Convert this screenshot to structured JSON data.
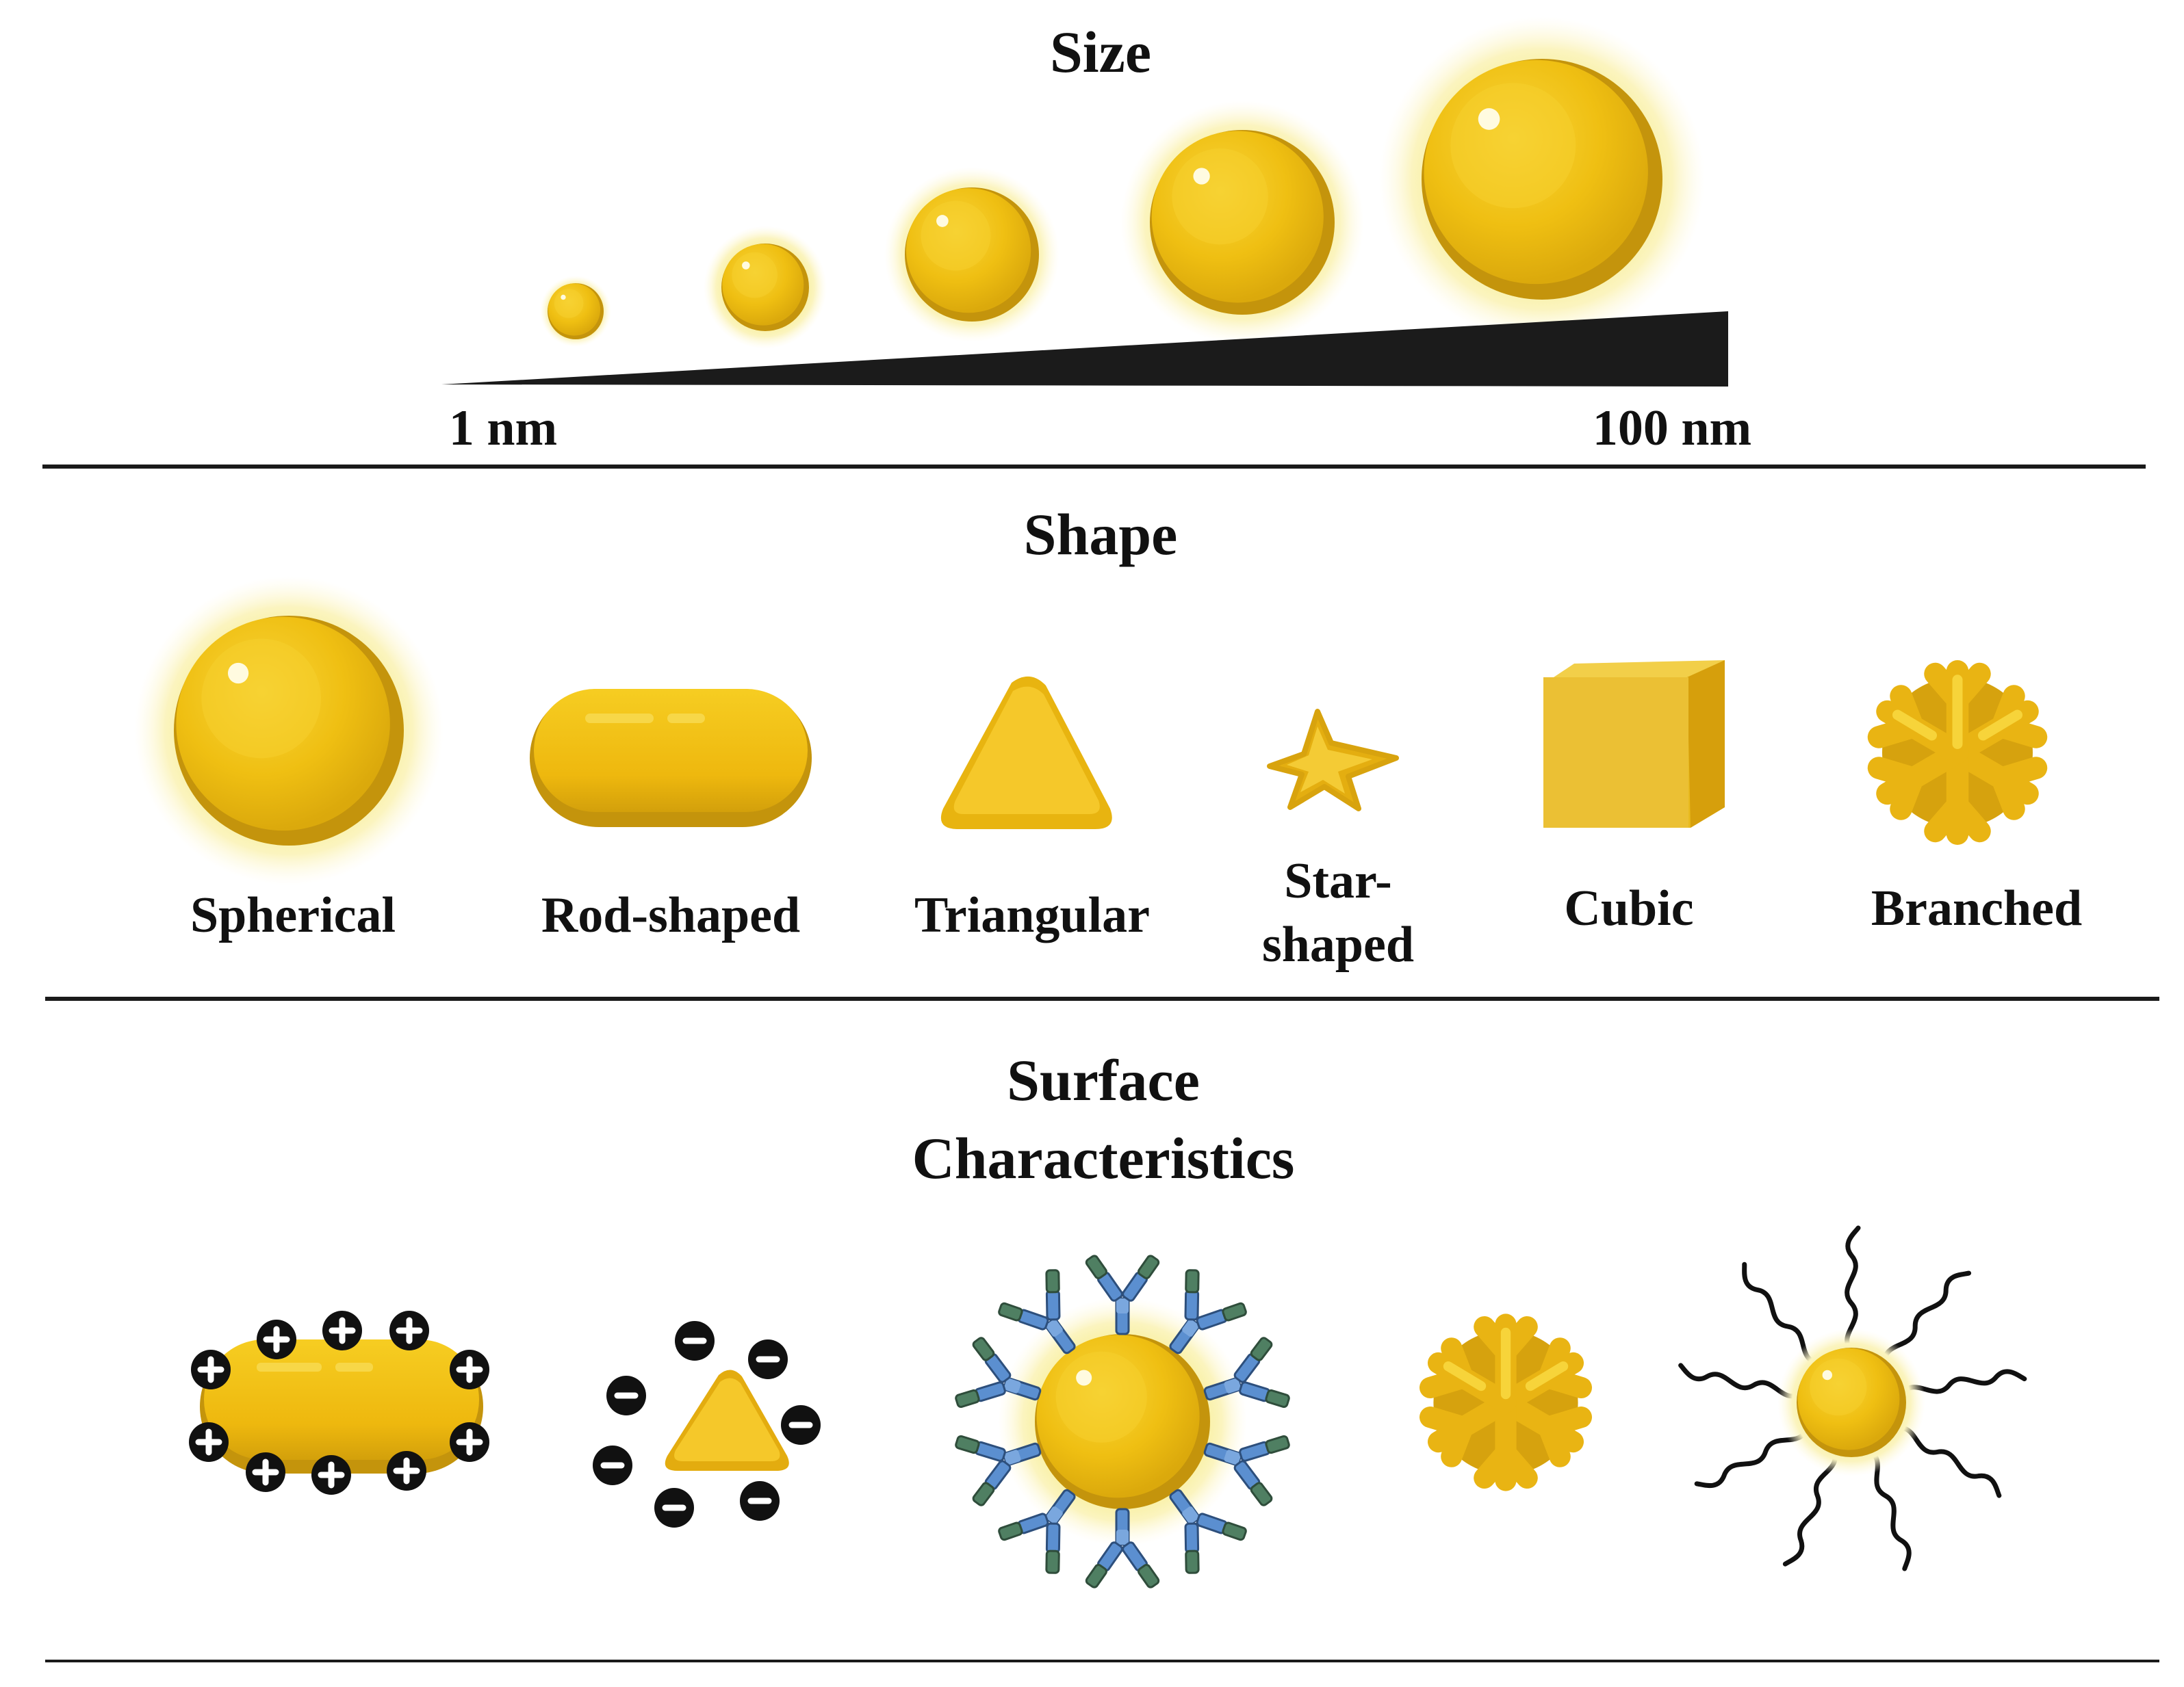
{
  "size_section": {
    "title": "Size",
    "scale_min_label": "1 nm",
    "scale_max_label": "100 nm"
  },
  "shape_section": {
    "title": "Shape",
    "labels": {
      "spherical": "Spherical",
      "rod": "Rod-shaped",
      "triangular": "Triangular",
      "star_line1": "Star-",
      "star_line2": "shaped",
      "cubic": "Cubic",
      "branched": "Branched"
    }
  },
  "surface_section": {
    "title_line1": "Surface",
    "title_line2": "Characteristics"
  },
  "colors": {
    "gold": "#eebb10",
    "gold_light": "#f7d132",
    "gold_dark": "#c4940c",
    "glow": "#fbf3b8",
    "antibody_blue": "#5b8fd0",
    "antibody_green": "#4f7f62",
    "line": "#1a1a1a"
  },
  "icons": [
    "nanoparticle-sphere-icon",
    "gold-nanorod-icon",
    "nanotriangle-icon",
    "nanostar-icon",
    "nanocube-icon",
    "branched-nanoparticle-icon",
    "positive-charge-icon",
    "negative-charge-icon",
    "antibody-icon",
    "polymer-chain-icon"
  ]
}
